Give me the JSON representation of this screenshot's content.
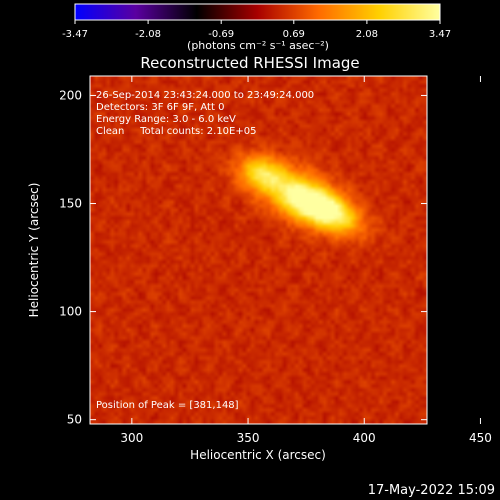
{
  "chart_data": {
    "type": "heatmap",
    "title": "Reconstructed RHESSI Image",
    "xlabel": "Heliocentric X (arcsec)",
    "ylabel": "Heliocentric Y (arcsec)",
    "xlim": [
      282,
      427
    ],
    "ylim": [
      48,
      209
    ],
    "x_ticks": [
      300,
      350,
      400,
      450
    ],
    "y_ticks": [
      50,
      100,
      150,
      200
    ],
    "colorbar": {
      "label": "(photons cm⁻² s⁻¹ asec⁻²)",
      "min": -3.47,
      "max": 3.47,
      "ticks": [
        -3.47,
        -2.08,
        -0.69,
        0.69,
        2.08,
        3.47
      ],
      "tick_labels": [
        "-3.47",
        "-2.08",
        "-0.69",
        "0.69",
        "2.08",
        "3.47"
      ],
      "colormap": [
        "#0000ff",
        "#5a00a0",
        "#000000",
        "#a80000",
        "#ff6a00",
        "#ffd000",
        "#ffffa0"
      ]
    },
    "annotations": [
      "26-Sep-2014 23:43:24.000 to 23:49:24.000",
      "Detectors: 3F 6F 9F, Att 0",
      "Energy Range: 3.0 - 6.0 keV",
      "Clean     Total counts: 2.10E+05"
    ],
    "peak_label": "Position of Peak = [381,148]",
    "peak": {
      "x": 381,
      "y": 148
    },
    "sources": [
      {
        "x": 381,
        "y": 148,
        "amp": 3.47,
        "sx": 11,
        "sy": 5,
        "angle_deg": -28
      },
      {
        "x": 356,
        "y": 164,
        "amp": 1.9,
        "sx": 7,
        "sy": 5,
        "angle_deg": -20
      },
      {
        "x": 372,
        "y": 154,
        "amp": 1.6,
        "sx": 14,
        "sy": 8,
        "angle_deg": -28
      }
    ],
    "background_level": 0.45,
    "grid": false
  },
  "footer": {
    "timestamp": "17-May-2022 15:09"
  }
}
